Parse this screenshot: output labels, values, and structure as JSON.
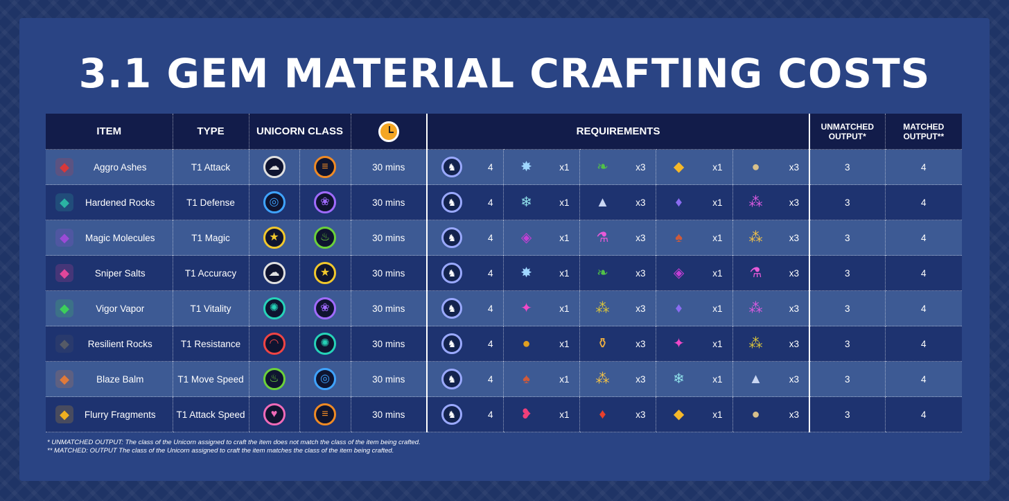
{
  "title": "3.1 GEM MATERIAL CRAFTING COSTS",
  "headers": {
    "item": "ITEM",
    "type": "TYPE",
    "unicorn_class": "UNICORN CLASS",
    "requirements": "REQUIREMENTS",
    "unmatched": "UNMATCHED OUTPUT*",
    "matched": "MATCHED OUTPUT**"
  },
  "rows": [
    {
      "item": "Aggro Ashes",
      "item_icon": "red-crystal-ash-icon",
      "item_color": "#d8383a",
      "type": "T1 Attack",
      "class1": {
        "icon": "storm-cloud-icon",
        "color": "#e0e0e0",
        "glyph": "☁"
      },
      "class2": {
        "icon": "orange-burger-icon",
        "color": "#f08a24",
        "glyph": "≡"
      },
      "time": "30 mins",
      "unicorn_qty": "4",
      "reqs": [
        {
          "icon": "ice-star-icon",
          "glyph": "✸",
          "color": "#9fd6ff",
          "qty": "x1"
        },
        {
          "icon": "green-leaf-icon",
          "glyph": "❧",
          "color": "#52c248",
          "qty": "x3"
        },
        {
          "icon": "cheese-icon",
          "glyph": "◆",
          "color": "#f5b82a",
          "qty": "x1"
        },
        {
          "icon": "potato-stone-icon",
          "glyph": "●",
          "color": "#d9c08a",
          "qty": "x3"
        }
      ],
      "unmatched": "3",
      "matched": "4"
    },
    {
      "item": "Hardened Rocks",
      "item_icon": "teal-rocks-icon",
      "item_color": "#2bb3a3",
      "type": "T1 Defense",
      "class1": {
        "icon": "planet-ring-icon",
        "color": "#3fa3ff",
        "glyph": "◎"
      },
      "class2": {
        "icon": "purple-lotus-icon",
        "color": "#a06bff",
        "glyph": "❀"
      },
      "time": "30 mins",
      "unicorn_qty": "4",
      "reqs": [
        {
          "icon": "water-crystal-icon",
          "glyph": "❄",
          "color": "#8fe0ea",
          "qty": "x1"
        },
        {
          "icon": "snow-pile-icon",
          "glyph": "▲",
          "color": "#c9d6f2",
          "qty": "x3"
        },
        {
          "icon": "purple-shards-icon",
          "glyph": "♦",
          "color": "#8a6cf0",
          "qty": "x1"
        },
        {
          "icon": "magenta-droplets-icon",
          "glyph": "⁂",
          "color": "#d85ae0",
          "qty": "x3"
        }
      ],
      "unmatched": "3",
      "matched": "4"
    },
    {
      "item": "Magic Molecules",
      "item_icon": "purple-molecules-icon",
      "item_color": "#9a4bd6",
      "type": "T1 Magic",
      "class1": {
        "icon": "gold-star-icon",
        "color": "#f2c82c",
        "glyph": "★"
      },
      "class2": {
        "icon": "green-flame-icon",
        "color": "#6bd13a",
        "glyph": "♨"
      },
      "time": "30 mins",
      "unicorn_qty": "4",
      "reqs": [
        {
          "icon": "gem-cube-icon",
          "glyph": "◈",
          "color": "#c43fd6",
          "qty": "x1"
        },
        {
          "icon": "magic-vial-icon",
          "glyph": "⚗",
          "color": "#e85ad8",
          "qty": "x3"
        },
        {
          "icon": "mushroom-icon",
          "glyph": "♠",
          "color": "#d05a3a",
          "qty": "x1"
        },
        {
          "icon": "golden-sparkles-icon",
          "glyph": "⁂",
          "color": "#f0c048",
          "qty": "x3"
        }
      ],
      "unmatched": "3",
      "matched": "4"
    },
    {
      "item": "Sniper Salts",
      "item_icon": "pink-jar-icon",
      "item_color": "#e0479a",
      "type": "T1 Accuracy",
      "class1": {
        "icon": "storm-cloud-icon",
        "color": "#e0e0e0",
        "glyph": "☁"
      },
      "class2": {
        "icon": "gold-star-icon",
        "color": "#f2c82c",
        "glyph": "★"
      },
      "time": "30 mins",
      "unicorn_qty": "4",
      "reqs": [
        {
          "icon": "ice-star-icon",
          "glyph": "✸",
          "color": "#9fd6ff",
          "qty": "x1"
        },
        {
          "icon": "green-leaf-icon",
          "glyph": "❧",
          "color": "#52c248",
          "qty": "x3"
        },
        {
          "icon": "gem-cube-icon",
          "glyph": "◈",
          "color": "#c43fd6",
          "qty": "x1"
        },
        {
          "icon": "magic-vial-icon",
          "glyph": "⚗",
          "color": "#e85ad8",
          "qty": "x3"
        }
      ],
      "unmatched": "3",
      "matched": "4"
    },
    {
      "item": "Vigor Vapor",
      "item_icon": "green-vapor-icon",
      "item_color": "#3ccf5a",
      "type": "T1 Vitality",
      "class1": {
        "icon": "teal-virus-icon",
        "color": "#26d3b8",
        "glyph": "✺"
      },
      "class2": {
        "icon": "purple-lotus-icon",
        "color": "#a06bff",
        "glyph": "❀"
      },
      "time": "30 mins",
      "unicorn_qty": "4",
      "reqs": [
        {
          "icon": "pink-crystal-icon",
          "glyph": "✦",
          "color": "#f048c8",
          "qty": "x1"
        },
        {
          "icon": "confetti-icon",
          "glyph": "⁂",
          "color": "#d8c33c",
          "qty": "x3"
        },
        {
          "icon": "purple-shards-icon",
          "glyph": "♦",
          "color": "#8a6cf0",
          "qty": "x1"
        },
        {
          "icon": "magenta-droplets-icon",
          "glyph": "⁂",
          "color": "#d85ae0",
          "qty": "x3"
        }
      ],
      "unmatched": "3",
      "matched": "4"
    },
    {
      "item": "Resilient Rocks",
      "item_icon": "dark-rocks-icon",
      "item_color": "#555a66",
      "type": "T1 Resistance",
      "class1": {
        "icon": "red-rainbow-icon",
        "color": "#ef4444",
        "glyph": "◠"
      },
      "class2": {
        "icon": "teal-virus-icon",
        "color": "#26d3b8",
        "glyph": "✺"
      },
      "time": "30 mins",
      "unicorn_qty": "4",
      "reqs": [
        {
          "icon": "gold-pile-icon",
          "glyph": "●",
          "color": "#e0a020",
          "qty": "x1"
        },
        {
          "icon": "honey-bottle-icon",
          "glyph": "⚱",
          "color": "#f0b040",
          "qty": "x3"
        },
        {
          "icon": "pink-crystal-icon",
          "glyph": "✦",
          "color": "#f048c8",
          "qty": "x1"
        },
        {
          "icon": "confetti-icon",
          "glyph": "⁂",
          "color": "#d8c33c",
          "qty": "x3"
        }
      ],
      "unmatched": "3",
      "matched": "4"
    },
    {
      "item": "Blaze Balm",
      "item_icon": "cupcake-balm-icon",
      "item_color": "#e07a3a",
      "type": "T1 Move Speed",
      "class1": {
        "icon": "green-flame-icon",
        "color": "#6bd13a",
        "glyph": "♨"
      },
      "class2": {
        "icon": "planet-ring-icon",
        "color": "#3fa3ff",
        "glyph": "◎"
      },
      "time": "30 mins",
      "unicorn_qty": "4",
      "reqs": [
        {
          "icon": "mushroom-icon",
          "glyph": "♠",
          "color": "#d05a3a",
          "qty": "x1"
        },
        {
          "icon": "golden-sparkles-icon",
          "glyph": "⁂",
          "color": "#f0c048",
          "qty": "x3"
        },
        {
          "icon": "water-crystal-icon",
          "glyph": "❄",
          "color": "#8fe0ea",
          "qty": "x1"
        },
        {
          "icon": "snow-pile-icon",
          "glyph": "▲",
          "color": "#c9d6f2",
          "qty": "x3"
        }
      ],
      "unmatched": "3",
      "matched": "4"
    },
    {
      "item": "Flurry Fragments",
      "item_icon": "golden-swirl-icon",
      "item_color": "#f0b020",
      "type": "T1 Attack Speed",
      "class1": {
        "icon": "pink-heart-icon",
        "color": "#f06ab8",
        "glyph": "♥"
      },
      "class2": {
        "icon": "orange-burger-icon",
        "color": "#f08a24",
        "glyph": "≡"
      },
      "time": "30 mins",
      "unicorn_qty": "4",
      "reqs": [
        {
          "icon": "winged-gem-icon",
          "glyph": "❥",
          "color": "#ef3f7a",
          "qty": "x1"
        },
        {
          "icon": "red-gem-icon",
          "glyph": "♦",
          "color": "#e8402c",
          "qty": "x3"
        },
        {
          "icon": "cheese-icon",
          "glyph": "◆",
          "color": "#f5b82a",
          "qty": "x1"
        },
        {
          "icon": "potato-stone-icon",
          "glyph": "●",
          "color": "#d9c08a",
          "qty": "x3"
        }
      ],
      "unmatched": "3",
      "matched": "4"
    }
  ],
  "footnotes": [
    "* UNMATCHED OUTPUT: The class of the Unicorn assigned to craft the item does not match the class of the item being crafted.",
    "** MATCHED: OUTPUT The class of the Unicorn assigned to craft the item matches the class of the item being crafted."
  ]
}
